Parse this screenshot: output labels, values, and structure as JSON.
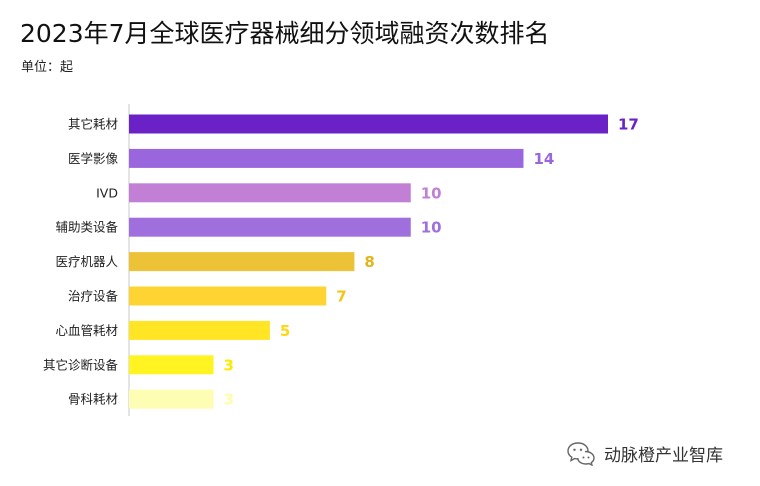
{
  "header": {
    "title": "2023年7月全球医疗器械细分领域融资次数排名",
    "unit": "单位：起"
  },
  "chart_data": {
    "type": "bar",
    "orientation": "horizontal",
    "title": "2023年7月全球医疗器械细分领域融资次数排名",
    "xlabel": "",
    "ylabel": "",
    "xlim": [
      0,
      17
    ],
    "grid": false,
    "categories": [
      "其它耗材",
      "医学影像",
      "IVD",
      "辅助类设备",
      "医疗机器人",
      "治疗设备",
      "心血管耗材",
      "其它诊断设备",
      "骨科耗材"
    ],
    "values": [
      17,
      14,
      10,
      10,
      8,
      7,
      5,
      3,
      3
    ],
    "bar_colors": [
      "#6a22c6",
      "#9a66dd",
      "#c17fd5",
      "#9f70dd",
      "#ecc236",
      "#fdd431",
      "#ffe524",
      "#fff321",
      "#fefdb4"
    ],
    "label_colors": [
      "#6a22c6",
      "#9a66dd",
      "#c17fd5",
      "#9f70dd",
      "#e1b51c",
      "#f5c419",
      "#ffd713",
      "#fde800",
      "#fefda9"
    ]
  },
  "footer": {
    "icon": "wechat-icon",
    "brand": "动脉橙产业智库"
  }
}
